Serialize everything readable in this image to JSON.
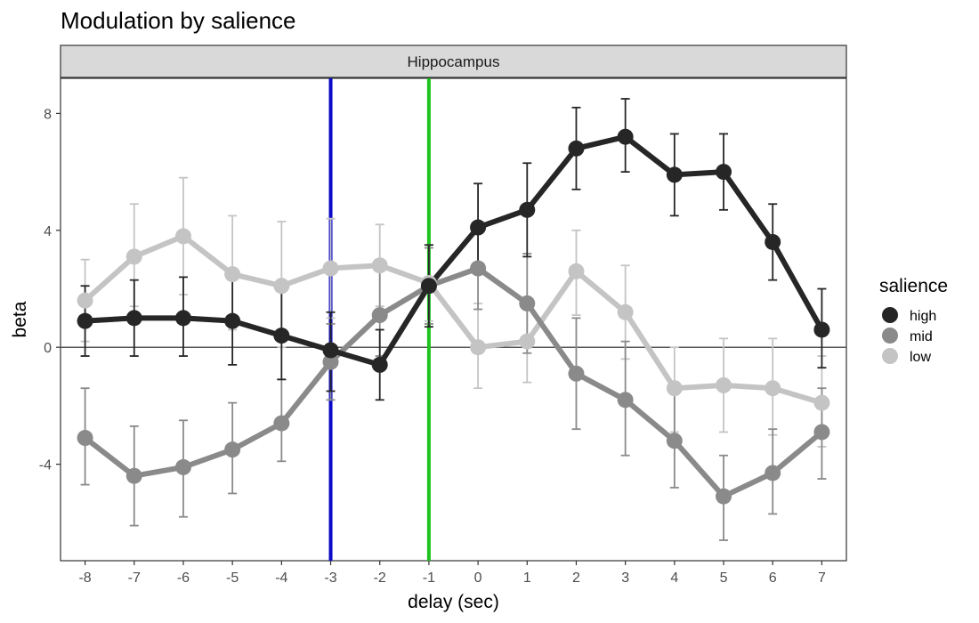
{
  "chart_data": {
    "type": "line",
    "title": "Modulation by salience",
    "facet_label": "Hippocampus",
    "xlabel": "delay (sec)",
    "ylabel": "beta",
    "xlim": [
      -8.5,
      7.5
    ],
    "ylim": [
      -7.3,
      9.2
    ],
    "x_ticks": [
      -8,
      -7,
      -6,
      -5,
      -4,
      -3,
      -2,
      -1,
      0,
      1,
      2,
      3,
      4,
      5,
      6,
      7
    ],
    "y_ticks": [
      -4,
      0,
      4,
      8
    ],
    "grid": false,
    "hline": 0,
    "vlines": [
      {
        "x": -3,
        "color": "#0a0ac8"
      },
      {
        "x": -1,
        "color": "#1ec31e"
      }
    ],
    "legend": {
      "title": "salience",
      "position": "right"
    },
    "x": [
      -8,
      -7,
      -6,
      -5,
      -4,
      -3,
      -2,
      -1,
      0,
      1,
      2,
      3,
      4,
      5,
      6,
      7
    ],
    "series": [
      {
        "name": "low",
        "color": "#c4c4c4",
        "values": [
          1.6,
          3.1,
          3.8,
          2.5,
          2.1,
          2.7,
          2.8,
          2.2,
          0.0,
          0.2,
          2.6,
          1.2,
          -1.4,
          -1.3,
          -1.4,
          -1.9
        ],
        "lower": [
          0.2,
          1.4,
          1.8,
          0.6,
          0.0,
          1.0,
          1.4,
          0.9,
          -1.4,
          -1.2,
          1.1,
          -0.4,
          -2.9,
          -2.9,
          -3.0,
          -3.4
        ],
        "upper": [
          3.0,
          4.9,
          5.8,
          4.5,
          4.3,
          4.4,
          4.2,
          3.5,
          1.5,
          1.6,
          4.0,
          2.8,
          0.0,
          0.3,
          0.3,
          -0.3
        ]
      },
      {
        "name": "mid",
        "color": "#8a8a8a",
        "values": [
          -3.1,
          -4.4,
          -4.1,
          -3.5,
          -2.6,
          -0.5,
          1.1,
          2.1,
          2.7,
          1.5,
          -0.9,
          -1.8,
          -3.2,
          -5.1,
          -4.3,
          -2.9
        ],
        "lower": [
          -4.7,
          -6.1,
          -5.8,
          -5.0,
          -3.9,
          -1.8,
          -0.3,
          0.8,
          1.3,
          -0.2,
          -2.8,
          -3.7,
          -4.8,
          -6.6,
          -5.7,
          -4.5
        ],
        "upper": [
          -1.4,
          -2.7,
          -2.5,
          -1.9,
          -1.1,
          0.8,
          2.6,
          3.4,
          4.2,
          3.2,
          1.0,
          0.2,
          -1.4,
          -3.7,
          -2.8,
          -1.4
        ]
      },
      {
        "name": "high",
        "color": "#262626",
        "values": [
          0.9,
          1.0,
          1.0,
          0.9,
          0.4,
          -0.1,
          -0.6,
          2.1,
          4.1,
          4.7,
          6.8,
          7.2,
          5.9,
          6.0,
          3.6,
          0.6
        ],
        "lower": [
          -0.3,
          -0.3,
          -0.3,
          -0.6,
          -1.1,
          -1.5,
          -1.8,
          0.7,
          2.6,
          3.1,
          5.4,
          6.0,
          4.5,
          4.7,
          2.3,
          -0.7
        ],
        "upper": [
          2.1,
          2.3,
          2.4,
          2.5,
          1.9,
          1.2,
          0.6,
          3.5,
          5.6,
          6.3,
          8.2,
          8.5,
          7.3,
          7.3,
          4.9,
          2.0
        ]
      }
    ]
  }
}
